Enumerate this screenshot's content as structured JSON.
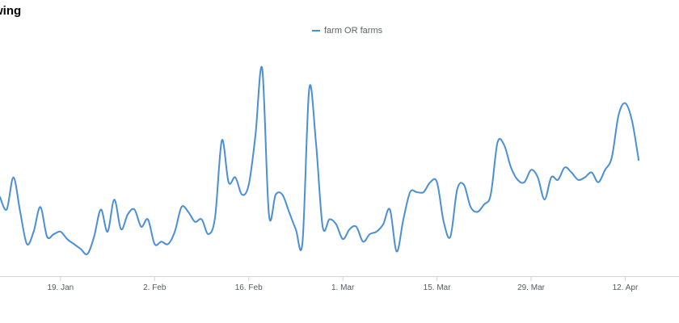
{
  "chart_data": {
    "type": "line",
    "title": "wing",
    "legend_position": "top-center",
    "grid": false,
    "colors": {
      "series": "#4a8fd4",
      "axis": "#cfd4da"
    },
    "x_domain": [
      "2020-01-10",
      "2020-04-20"
    ],
    "y_range": [
      0,
      100
    ],
    "x_ticks": [
      {
        "date": "2020-01-19",
        "label": "19. Jan"
      },
      {
        "date": "2020-02-02",
        "label": "2. Feb"
      },
      {
        "date": "2020-02-16",
        "label": "16. Feb"
      },
      {
        "date": "2020-03-01",
        "label": "1. Mar"
      },
      {
        "date": "2020-03-15",
        "label": "15. Mar"
      },
      {
        "date": "2020-03-29",
        "label": "29. Mar"
      },
      {
        "date": "2020-04-12",
        "label": "12. Apr"
      }
    ],
    "series": [
      {
        "name": "farm OR farms",
        "points": [
          [
            "2020-01-10",
            32
          ],
          [
            "2020-01-11",
            27
          ],
          [
            "2020-01-12",
            40
          ],
          [
            "2020-01-13",
            26
          ],
          [
            "2020-01-14",
            13
          ],
          [
            "2020-01-15",
            18
          ],
          [
            "2020-01-16",
            28
          ],
          [
            "2020-01-17",
            16
          ],
          [
            "2020-01-18",
            17
          ],
          [
            "2020-01-19",
            18
          ],
          [
            "2020-01-20",
            15
          ],
          [
            "2020-01-21",
            13
          ],
          [
            "2020-01-22",
            11
          ],
          [
            "2020-01-23",
            9
          ],
          [
            "2020-01-24",
            16
          ],
          [
            "2020-01-25",
            27
          ],
          [
            "2020-01-26",
            18
          ],
          [
            "2020-01-27",
            31
          ],
          [
            "2020-01-28",
            19
          ],
          [
            "2020-01-29",
            25
          ],
          [
            "2020-01-30",
            27
          ],
          [
            "2020-01-31",
            20
          ],
          [
            "2020-02-01",
            23
          ],
          [
            "2020-02-02",
            13
          ],
          [
            "2020-02-03",
            14
          ],
          [
            "2020-02-04",
            13
          ],
          [
            "2020-02-05",
            18
          ],
          [
            "2020-02-06",
            28
          ],
          [
            "2020-02-07",
            26
          ],
          [
            "2020-02-08",
            22
          ],
          [
            "2020-02-09",
            23
          ],
          [
            "2020-02-10",
            17
          ],
          [
            "2020-02-11",
            24
          ],
          [
            "2020-02-12",
            55
          ],
          [
            "2020-02-13",
            38
          ],
          [
            "2020-02-14",
            40
          ],
          [
            "2020-02-15",
            33
          ],
          [
            "2020-02-16",
            37
          ],
          [
            "2020-02-17",
            57
          ],
          [
            "2020-02-18",
            84
          ],
          [
            "2020-02-19",
            25
          ],
          [
            "2020-02-20",
            33
          ],
          [
            "2020-02-21",
            33
          ],
          [
            "2020-02-22",
            26
          ],
          [
            "2020-02-23",
            19
          ],
          [
            "2020-02-24",
            14
          ],
          [
            "2020-02-25",
            76
          ],
          [
            "2020-02-26",
            54
          ],
          [
            "2020-02-27",
            20
          ],
          [
            "2020-02-28",
            23
          ],
          [
            "2020-02-29",
            21
          ],
          [
            "2020-03-01",
            15
          ],
          [
            "2020-03-02",
            19
          ],
          [
            "2020-03-03",
            20
          ],
          [
            "2020-03-04",
            14
          ],
          [
            "2020-03-05",
            17
          ],
          [
            "2020-03-06",
            18
          ],
          [
            "2020-03-07",
            21
          ],
          [
            "2020-03-08",
            27
          ],
          [
            "2020-03-09",
            10
          ],
          [
            "2020-03-10",
            23
          ],
          [
            "2020-03-11",
            34
          ],
          [
            "2020-03-12",
            34
          ],
          [
            "2020-03-13",
            34
          ],
          [
            "2020-03-14",
            38
          ],
          [
            "2020-03-15",
            38
          ],
          [
            "2020-03-16",
            22
          ],
          [
            "2020-03-17",
            16
          ],
          [
            "2020-03-18",
            35
          ],
          [
            "2020-03-19",
            37
          ],
          [
            "2020-03-20",
            28
          ],
          [
            "2020-03-21",
            26
          ],
          [
            "2020-03-22",
            29
          ],
          [
            "2020-03-23",
            33
          ],
          [
            "2020-03-24",
            54
          ],
          [
            "2020-03-25",
            53
          ],
          [
            "2020-03-26",
            44
          ],
          [
            "2020-03-27",
            39
          ],
          [
            "2020-03-28",
            38
          ],
          [
            "2020-03-29",
            43
          ],
          [
            "2020-03-30",
            40
          ],
          [
            "2020-03-31",
            31
          ],
          [
            "2020-04-01",
            40
          ],
          [
            "2020-04-02",
            39
          ],
          [
            "2020-04-03",
            44
          ],
          [
            "2020-04-04",
            42
          ],
          [
            "2020-04-05",
            39
          ],
          [
            "2020-04-06",
            40
          ],
          [
            "2020-04-07",
            42
          ],
          [
            "2020-04-08",
            38
          ],
          [
            "2020-04-09",
            43
          ],
          [
            "2020-04-10",
            48
          ],
          [
            "2020-04-11",
            65
          ],
          [
            "2020-04-12",
            70
          ],
          [
            "2020-04-13",
            63
          ],
          [
            "2020-04-14",
            47
          ]
        ]
      }
    ]
  }
}
